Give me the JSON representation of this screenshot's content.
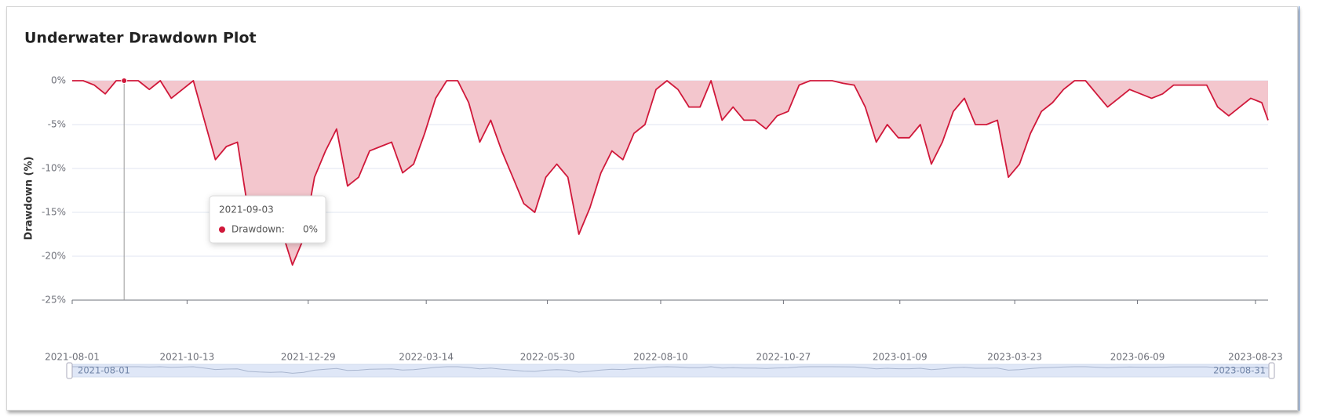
{
  "chart_data": {
    "type": "area",
    "title": "Underwater Drawdown Plot",
    "y_label": "Drawdown (%)",
    "ylim": [
      -25,
      0
    ],
    "yticks": [
      {
        "value": 0,
        "label": "0%"
      },
      {
        "value": -5,
        "label": "-5%"
      },
      {
        "value": -10,
        "label": "-10%"
      },
      {
        "value": -15,
        "label": "-15%"
      },
      {
        "value": -20,
        "label": "-20%"
      },
      {
        "value": -25,
        "label": "-25%"
      }
    ],
    "xlim": [
      "2021-08-01",
      "2023-08-31"
    ],
    "xticks": [
      "2021-08-01",
      "2021-10-13",
      "2021-12-29",
      "2022-03-14",
      "2022-05-30",
      "2022-08-10",
      "2022-10-27",
      "2023-01-09",
      "2023-03-23",
      "2023-06-09",
      "2023-08-23"
    ],
    "grid": true,
    "x": [
      "2021-08-01",
      "2021-08-08",
      "2021-08-15",
      "2021-08-22",
      "2021-08-29",
      "2021-09-05",
      "2021-09-12",
      "2021-09-19",
      "2021-09-26",
      "2021-10-03",
      "2021-10-10",
      "2021-10-17",
      "2021-10-24",
      "2021-10-31",
      "2021-11-07",
      "2021-11-14",
      "2021-11-21",
      "2021-11-28",
      "2021-12-05",
      "2021-12-12",
      "2021-12-19",
      "2021-12-26",
      "2022-01-02",
      "2022-01-09",
      "2022-01-16",
      "2022-01-23",
      "2022-01-30",
      "2022-02-06",
      "2022-02-13",
      "2022-02-20",
      "2022-02-27",
      "2022-03-06",
      "2022-03-13",
      "2022-03-20",
      "2022-03-27",
      "2022-04-03",
      "2022-04-10",
      "2022-04-17",
      "2022-04-24",
      "2022-05-01",
      "2022-05-08",
      "2022-05-15",
      "2022-05-22",
      "2022-05-29",
      "2022-06-05",
      "2022-06-12",
      "2022-06-19",
      "2022-06-26",
      "2022-07-03",
      "2022-07-10",
      "2022-07-17",
      "2022-07-24",
      "2022-07-31",
      "2022-08-07",
      "2022-08-14",
      "2022-08-21",
      "2022-08-28",
      "2022-09-04",
      "2022-09-11",
      "2022-09-18",
      "2022-09-25",
      "2022-10-02",
      "2022-10-09",
      "2022-10-16",
      "2022-10-23",
      "2022-10-30",
      "2022-11-06",
      "2022-11-13",
      "2022-11-20",
      "2022-11-27",
      "2022-12-04",
      "2022-12-11",
      "2022-12-18",
      "2022-12-25",
      "2023-01-01",
      "2023-01-08",
      "2023-01-15",
      "2023-01-22",
      "2023-01-29",
      "2023-02-05",
      "2023-02-12",
      "2023-02-19",
      "2023-02-26",
      "2023-03-05",
      "2023-03-12",
      "2023-03-19",
      "2023-03-26",
      "2023-04-02",
      "2023-04-09",
      "2023-04-16",
      "2023-04-23",
      "2023-04-30",
      "2023-05-07",
      "2023-05-14",
      "2023-05-21",
      "2023-05-28",
      "2023-06-04",
      "2023-06-11",
      "2023-06-18",
      "2023-06-25",
      "2023-07-02",
      "2023-07-09",
      "2023-07-16",
      "2023-07-23",
      "2023-07-30",
      "2023-08-06",
      "2023-08-13",
      "2023-08-20",
      "2023-08-27",
      "2023-08-31"
    ],
    "series": [
      {
        "name": "Drawdown",
        "color": "#d0183a",
        "fill": "#f3c6cd",
        "values": [
          0,
          0,
          -0.5,
          -1.5,
          0,
          0,
          0,
          -1,
          0,
          -2,
          -1,
          0,
          -4.5,
          -9,
          -7.5,
          -7,
          -15,
          -17,
          -18,
          -17,
          -21,
          -18,
          -11,
          -8,
          -5.5,
          -12,
          -11,
          -8,
          -7.5,
          -7,
          -10.5,
          -9.5,
          -6,
          -2,
          0,
          0,
          -2.5,
          -7,
          -4.5,
          -8,
          -11,
          -14,
          -15,
          -11,
          -9.5,
          -11,
          -17.5,
          -14.5,
          -10.5,
          -8,
          -9,
          -6,
          -5,
          -1,
          0,
          -1,
          -3,
          -3,
          0,
          -4.5,
          -3,
          -4.5,
          -4.5,
          -5.5,
          -4,
          -3.5,
          -0.5,
          0,
          0,
          0,
          -0.3,
          -0.5,
          -3,
          -7,
          -5,
          -6.5,
          -6.5,
          -5,
          -9.5,
          -7,
          -3.5,
          -2,
          -5,
          -5,
          -4.5,
          -11,
          -9.5,
          -6,
          -3.5,
          -2.5,
          -1,
          0,
          0,
          -1.5,
          -3,
          -2,
          -1,
          -1.5,
          -2,
          -1.5,
          -0.5,
          -0.5,
          -0.5,
          -0.5,
          -3,
          -4,
          -3,
          -2,
          -2.5,
          -4.5
        ]
      }
    ],
    "tooltip": {
      "x": "2021-09-03",
      "label": "Drawdown:",
      "value": 0,
      "value_label": "0%"
    },
    "data_zoom": {
      "start": "2021-08-01",
      "end": "2023-08-31"
    }
  }
}
